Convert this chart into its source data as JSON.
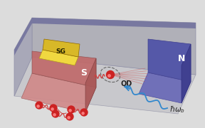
{
  "bg_color": "#dcdcdc",
  "platform_top_color": "#c8c8cc",
  "platform_front_color": "#b0b0b8",
  "platform_side_color": "#a8a8b8",
  "platform_base_color": "#7878a0",
  "S_top_color": "#d08888",
  "S_front_color": "#c06868",
  "S_right_color": "#a85858",
  "S_label": "S",
  "N_top_color": "#7070b8",
  "N_front_color": "#5558a8",
  "N_right_color": "#404090",
  "N_label": "N",
  "SG_top_color": "#f0d840",
  "SG_front_color": "#d8b828",
  "SG_label": "SG",
  "QD_label": "QD",
  "electron_color": "#cc2222",
  "electron_highlight": "#ff8888",
  "spring_color": "#cc4444",
  "wavy_color": "#3388cc",
  "beam_color": "#cc5555",
  "dashed_color": "#666666",
  "text_dark": "#222222"
}
